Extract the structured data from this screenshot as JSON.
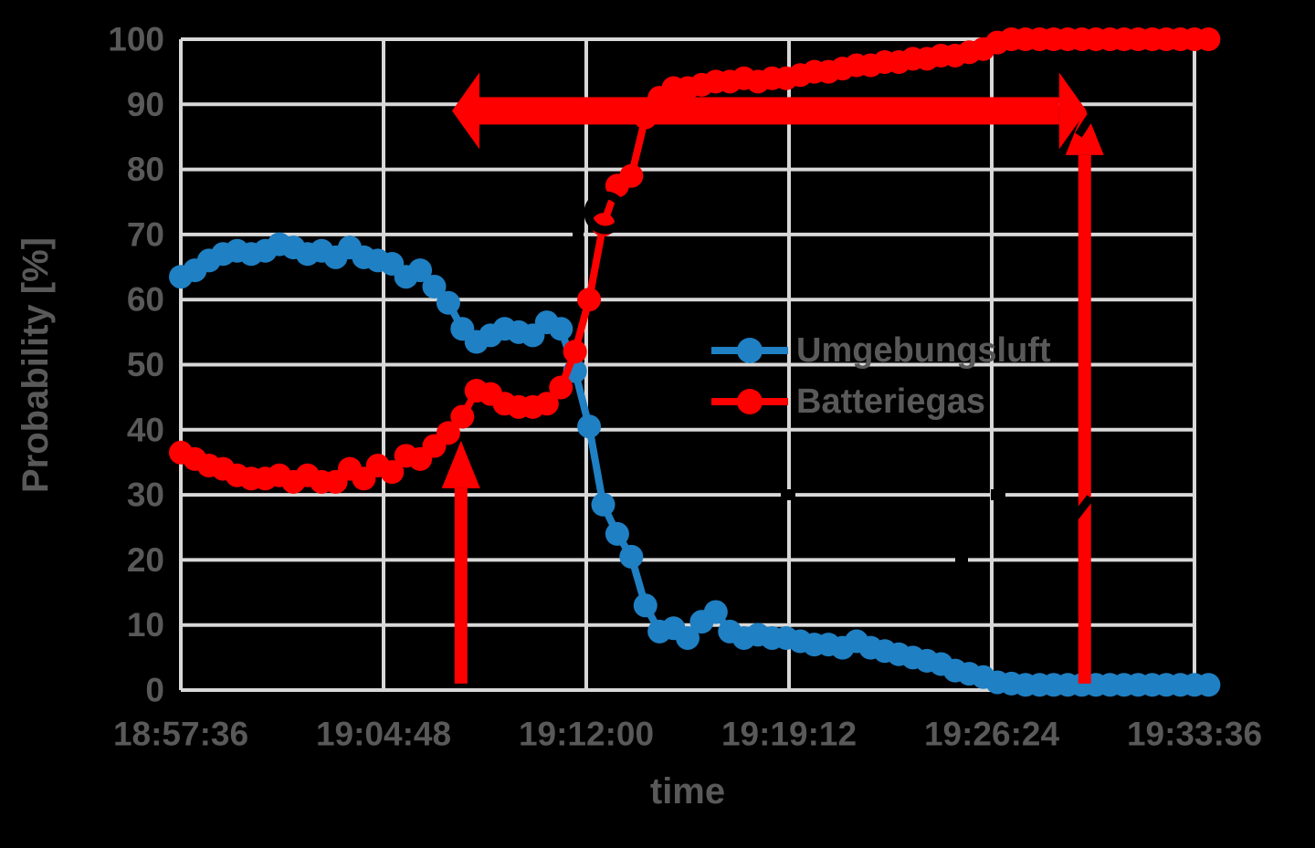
{
  "chart_data": {
    "type": "line",
    "title": "",
    "xlabel": "time",
    "ylabel": "Probability [%]",
    "ylim": [
      0,
      100
    ],
    "y_ticks": [
      0,
      10,
      20,
      30,
      40,
      50,
      60,
      70,
      80,
      90,
      100
    ],
    "x_tick_labels": [
      "18:57:36",
      "19:04:48",
      "19:12:00",
      "19:19:12",
      "19:26:24",
      "19:33:36"
    ],
    "x_tick_interval_seconds": 432,
    "x_start_time": "18:57:36",
    "x_step_seconds": 30,
    "grid": true,
    "legend_position": "inside-center-right",
    "series": [
      {
        "name": "Umgebungsluft",
        "color": "#1f80c4",
        "marker": "circle",
        "values": [
          63.5,
          64.5,
          66,
          67,
          67.5,
          67,
          67.5,
          68.5,
          68,
          67,
          67.5,
          66.5,
          68,
          66.5,
          66,
          65.5,
          63.5,
          64.5,
          62,
          59.5,
          55.5,
          53.5,
          54.5,
          55.5,
          55,
          54.5,
          56.5,
          55.5,
          49,
          40.5,
          28.5,
          24,
          20.5,
          13,
          9,
          9.5,
          8,
          10.5,
          12,
          9,
          8,
          8.5,
          8,
          8,
          7.5,
          7,
          7,
          6.5,
          7.5,
          6.5,
          6,
          5.5,
          5,
          4.5,
          4,
          3,
          2.5,
          2,
          1.2,
          1,
          0.8,
          0.8,
          0.8,
          0.8,
          0.8,
          0.8,
          0.8,
          0.8,
          0.8,
          0.8,
          0.8,
          0.8,
          0.8,
          0.8
        ]
      },
      {
        "name": "Batteriegas",
        "color": "#ff0000",
        "marker": "circle",
        "values": [
          36.5,
          35.5,
          34.5,
          34,
          33,
          32.5,
          32.5,
          33,
          32,
          33,
          32,
          32,
          34,
          32.5,
          34.5,
          33.5,
          36,
          35.5,
          37.5,
          39.5,
          42,
          46,
          45.5,
          44,
          43.5,
          43.5,
          44,
          46.5,
          52,
          60,
          71.5,
          77.5,
          79,
          88,
          91,
          92.5,
          92.5,
          93,
          93.5,
          93.5,
          94,
          93.5,
          94,
          94,
          94.5,
          95,
          95,
          95.5,
          96,
          96,
          96.5,
          96.5,
          97,
          97,
          97.5,
          97.5,
          98,
          98.5,
          99.5,
          100,
          100,
          100,
          100,
          100,
          100,
          100,
          100,
          100,
          100,
          100,
          100,
          100,
          100,
          100
        ]
      }
    ],
    "annotations": {
      "arrows": [
        {
          "id": "horizontal-span",
          "type": "double-headed-horizontal",
          "color": "#ff0000",
          "y_pct": 89,
          "t1_s": 578,
          "t2_s": 1930
        },
        {
          "id": "left-onset",
          "type": "vertical-up",
          "color": "#ff0000",
          "t_s": 597,
          "y_from_pct": 1,
          "y_to_pct": 38.3
        },
        {
          "id": "right-final",
          "type": "vertical-up",
          "color": "#ff0000",
          "t_s": 1926,
          "y_from_pct": 1,
          "y_to_pct": 89.5
        }
      ]
    }
  },
  "colors": {
    "background": "#000000",
    "grid": "#d8d8d8",
    "text": "#595959",
    "series_blue": "#1f80c4",
    "series_red": "#ff0000",
    "annotation_red": "#ff0000",
    "obscured_fragments": "#000000"
  }
}
